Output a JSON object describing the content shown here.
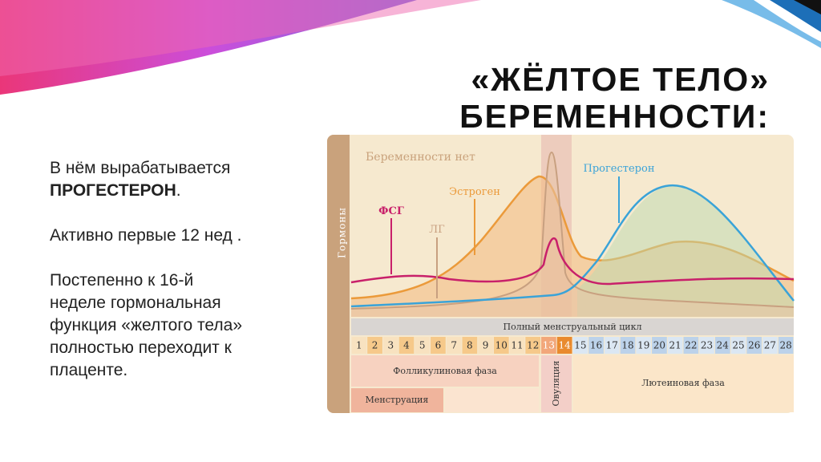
{
  "title": [
    "«ЖЁЛТОЕ ТЕЛО»",
    "БЕРЕМЕННОСТИ:"
  ],
  "body": {
    "p1": {
      "text": "В нём вырабатывается",
      "bold": "ПРОГЕСТЕРОН",
      "after": "."
    },
    "p2": "Активно первые 12 нед .",
    "p3": [
      "Постепенно к 16-й",
      "неделе гормональная",
      "функция «желтого тела»",
      "полностью переходит к",
      "плаценте."
    ]
  },
  "diagram": {
    "axis_label": "Гормоны",
    "heading": "Беременности нет",
    "hormones": {
      "estrogen": "Эстроген",
      "progesterone": "Прогестерон",
      "fsh": "ФСГ",
      "lh": "ЛГ"
    },
    "cycle": "Полный менструальный цикл",
    "days": [
      1,
      2,
      3,
      4,
      5,
      6,
      7,
      8,
      9,
      10,
      11,
      12,
      13,
      14,
      15,
      16,
      17,
      18,
      19,
      20,
      21,
      22,
      23,
      24,
      25,
      26,
      27,
      28
    ],
    "phases": {
      "follicular": "Фолликулиновая фаза",
      "ovulation": "Овуляция",
      "luteal": "Лютеиновая фаза",
      "menstruation": "Менструация"
    }
  }
}
